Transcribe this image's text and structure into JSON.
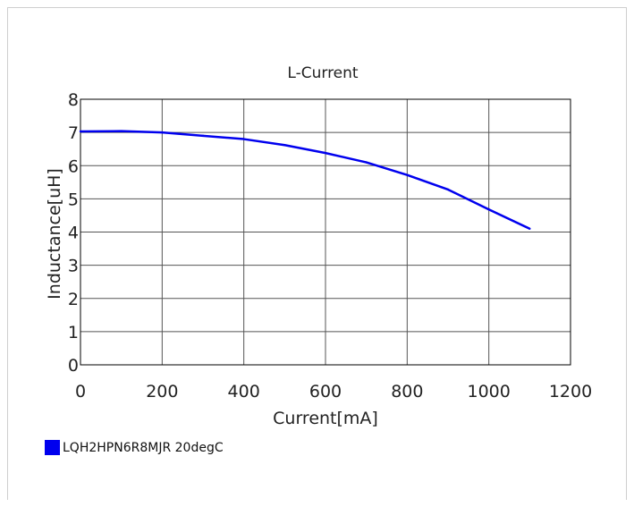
{
  "chart_data": {
    "type": "line",
    "title": "L-Current",
    "xlabel": "Current[mA]",
    "ylabel": "Inductance[uH]",
    "xlim": [
      0,
      1200
    ],
    "ylim": [
      0,
      8
    ],
    "x_ticks": [
      "0",
      "200",
      "400",
      "600",
      "800",
      "1000",
      "1200"
    ],
    "y_ticks": [
      "0",
      "1",
      "2",
      "3",
      "4",
      "5",
      "6",
      "7",
      "8"
    ],
    "grid": true,
    "legend_position": "bottom-left",
    "series": [
      {
        "name": "LQH2HPN6R8MJR 20degC",
        "color": "#0000ee",
        "x": [
          0,
          100,
          200,
          300,
          400,
          500,
          600,
          700,
          800,
          900,
          1000,
          1100
        ],
        "y": [
          7.03,
          7.04,
          7.0,
          6.9,
          6.8,
          6.62,
          6.38,
          6.1,
          5.72,
          5.28,
          4.68,
          4.1
        ]
      }
    ]
  }
}
